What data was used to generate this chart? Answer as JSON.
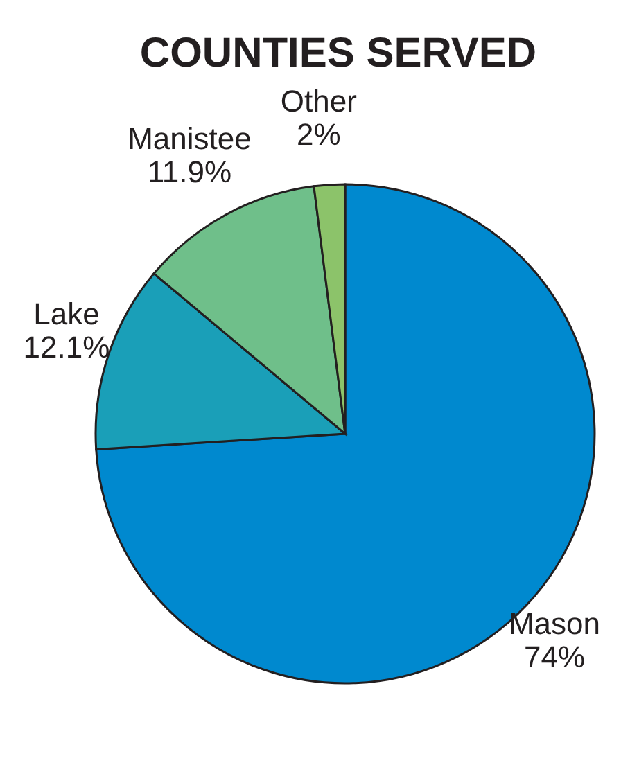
{
  "chart_data": {
    "type": "pie",
    "title": "COUNTIES SERVED",
    "categories": [
      "Mason",
      "Lake",
      "Manistee",
      "Other"
    ],
    "values": [
      74,
      12.1,
      11.9,
      2
    ],
    "colors": [
      "#0089cf",
      "#1a9fb8",
      "#6fbf8a",
      "#8cc36a"
    ],
    "value_labels": [
      "74%",
      "12.1%",
      "11.9%",
      "2%"
    ],
    "legend": false
  }
}
